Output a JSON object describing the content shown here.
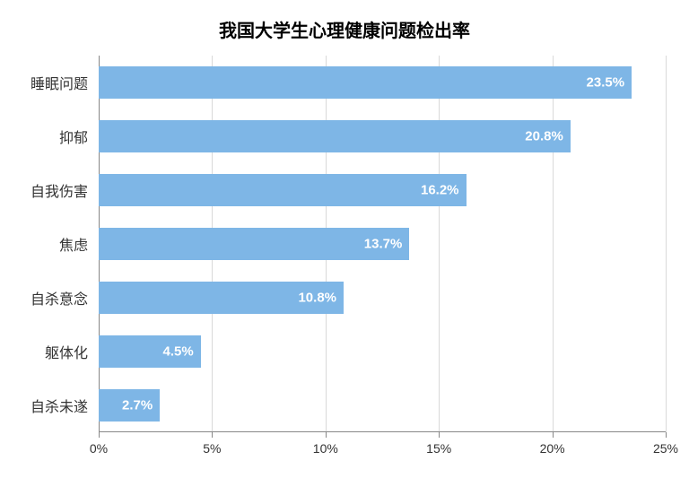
{
  "chart": {
    "type": "bar-horizontal",
    "title": "我国大学生心理健康问题检出率",
    "title_fontsize": 20,
    "title_color": "#000000",
    "background_color": "#ffffff",
    "bar_color": "#7eb6e6",
    "grid_color": "#d9d9d9",
    "axis_color": "#888888",
    "bar_label_color": "#ffffff",
    "bar_label_fontsize": 15,
    "y_label_fontsize": 16,
    "y_label_color": "#333333",
    "x_label_fontsize": 14,
    "x_label_color": "#333333",
    "xlim": [
      0,
      25
    ],
    "x_ticks": [
      0,
      5,
      10,
      15,
      20,
      25
    ],
    "x_tick_labels": [
      "0%",
      "5%",
      "10%",
      "15%",
      "20%",
      "25%"
    ],
    "bar_height_ratio": 0.6,
    "categories": [
      "睡眠问题",
      "抑郁",
      "自我伤害",
      "焦虑",
      "自杀意念",
      "躯体化",
      "自杀未遂"
    ],
    "values": [
      23.5,
      20.8,
      16.2,
      13.7,
      10.8,
      4.5,
      2.7
    ],
    "value_labels": [
      "23.5%",
      "20.8%",
      "16.2%",
      "13.7%",
      "10.8%",
      "4.5%",
      "2.7%"
    ]
  }
}
